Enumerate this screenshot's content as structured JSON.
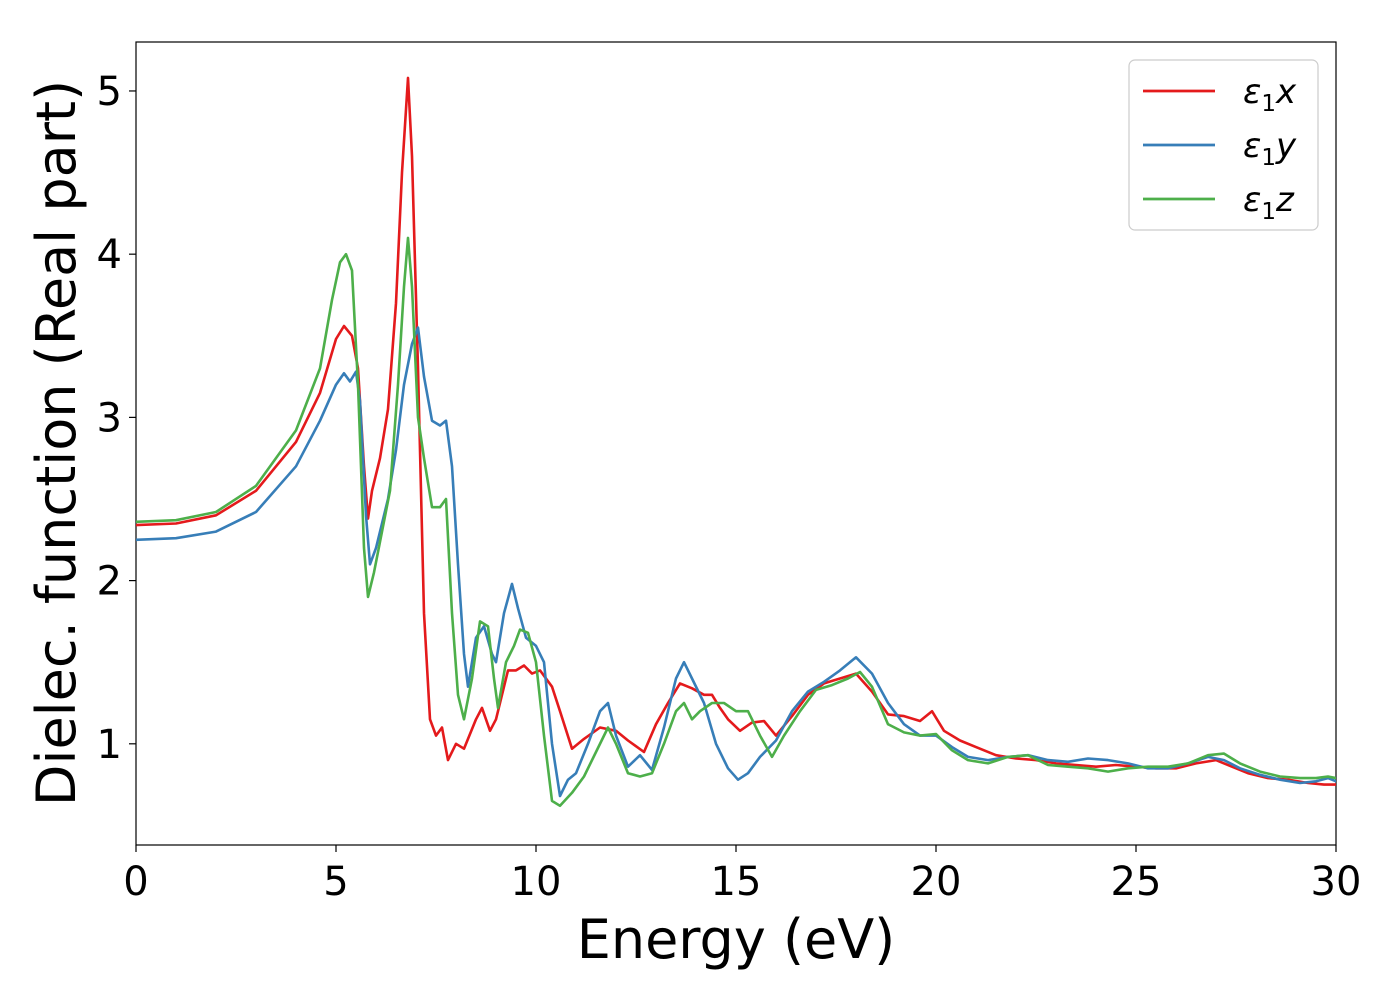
{
  "chart_data": {
    "type": "line",
    "xlabel": "Energy (eV)",
    "ylabel": "Dielec. function (Real part)",
    "xlim": [
      0,
      30
    ],
    "ylim": [
      0.38,
      5.3
    ],
    "xticks": [
      "0",
      "5",
      "10",
      "15",
      "20",
      "25",
      "30"
    ],
    "yticks": [
      "1",
      "2",
      "3",
      "4",
      "5"
    ],
    "grid": false,
    "legend_position": "top-right",
    "series": [
      {
        "name": "ε₁x",
        "legend_base": "ε",
        "legend_sub": "1",
        "legend_suffix": "x",
        "color": "#e41a1c",
        "points": [
          [
            0,
            2.34
          ],
          [
            1,
            2.35
          ],
          [
            2,
            2.4
          ],
          [
            3,
            2.55
          ],
          [
            4,
            2.85
          ],
          [
            4.6,
            3.15
          ],
          [
            5,
            3.48
          ],
          [
            5.2,
            3.56
          ],
          [
            5.4,
            3.5
          ],
          [
            5.55,
            3.3
          ],
          [
            5.7,
            2.7
          ],
          [
            5.8,
            2.38
          ],
          [
            5.9,
            2.55
          ],
          [
            6.1,
            2.75
          ],
          [
            6.3,
            3.05
          ],
          [
            6.5,
            3.7
          ],
          [
            6.65,
            4.5
          ],
          [
            6.8,
            5.08
          ],
          [
            6.9,
            4.6
          ],
          [
            7.05,
            3.3
          ],
          [
            7.2,
            1.8
          ],
          [
            7.35,
            1.15
          ],
          [
            7.5,
            1.05
          ],
          [
            7.65,
            1.1
          ],
          [
            7.8,
            0.9
          ],
          [
            8.0,
            1.0
          ],
          [
            8.2,
            0.97
          ],
          [
            8.5,
            1.15
          ],
          [
            8.65,
            1.22
          ],
          [
            8.85,
            1.08
          ],
          [
            9.0,
            1.15
          ],
          [
            9.3,
            1.45
          ],
          [
            9.5,
            1.45
          ],
          [
            9.7,
            1.48
          ],
          [
            9.9,
            1.43
          ],
          [
            10.1,
            1.45
          ],
          [
            10.4,
            1.35
          ],
          [
            10.6,
            1.2
          ],
          [
            10.9,
            0.97
          ],
          [
            11.2,
            1.03
          ],
          [
            11.6,
            1.1
          ],
          [
            12.0,
            1.08
          ],
          [
            12.3,
            1.02
          ],
          [
            12.7,
            0.95
          ],
          [
            13.0,
            1.12
          ],
          [
            13.3,
            1.25
          ],
          [
            13.6,
            1.37
          ],
          [
            13.9,
            1.34
          ],
          [
            14.2,
            1.3
          ],
          [
            14.4,
            1.3
          ],
          [
            14.6,
            1.22
          ],
          [
            14.8,
            1.15
          ],
          [
            15.1,
            1.08
          ],
          [
            15.4,
            1.13
          ],
          [
            15.7,
            1.14
          ],
          [
            16.0,
            1.05
          ],
          [
            16.4,
            1.17
          ],
          [
            16.8,
            1.3
          ],
          [
            17.2,
            1.37
          ],
          [
            17.6,
            1.4
          ],
          [
            18.0,
            1.43
          ],
          [
            18.4,
            1.32
          ],
          [
            18.8,
            1.18
          ],
          [
            19.2,
            1.17
          ],
          [
            19.6,
            1.14
          ],
          [
            19.9,
            1.2
          ],
          [
            20.2,
            1.08
          ],
          [
            20.6,
            1.02
          ],
          [
            21.0,
            0.98
          ],
          [
            21.5,
            0.93
          ],
          [
            22.0,
            0.91
          ],
          [
            22.5,
            0.9
          ],
          [
            23.0,
            0.88
          ],
          [
            23.5,
            0.87
          ],
          [
            24.0,
            0.86
          ],
          [
            24.5,
            0.87
          ],
          [
            25.0,
            0.86
          ],
          [
            25.5,
            0.85
          ],
          [
            26.0,
            0.85
          ],
          [
            26.5,
            0.88
          ],
          [
            27.0,
            0.9
          ],
          [
            27.4,
            0.86
          ],
          [
            27.8,
            0.82
          ],
          [
            28.3,
            0.79
          ],
          [
            28.8,
            0.78
          ],
          [
            29.3,
            0.76
          ],
          [
            29.7,
            0.75
          ],
          [
            30.0,
            0.75
          ]
        ]
      },
      {
        "name": "ε₁y",
        "legend_base": "ε",
        "legend_sub": "1",
        "legend_suffix": "y",
        "color": "#377eb8",
        "points": [
          [
            0,
            2.25
          ],
          [
            1,
            2.26
          ],
          [
            2,
            2.3
          ],
          [
            3,
            2.42
          ],
          [
            4,
            2.7
          ],
          [
            4.6,
            2.98
          ],
          [
            5,
            3.2
          ],
          [
            5.2,
            3.27
          ],
          [
            5.35,
            3.22
          ],
          [
            5.5,
            3.28
          ],
          [
            5.6,
            3.1
          ],
          [
            5.75,
            2.4
          ],
          [
            5.85,
            2.1
          ],
          [
            6.0,
            2.2
          ],
          [
            6.3,
            2.5
          ],
          [
            6.5,
            2.8
          ],
          [
            6.7,
            3.2
          ],
          [
            6.9,
            3.45
          ],
          [
            7.05,
            3.55
          ],
          [
            7.2,
            3.25
          ],
          [
            7.4,
            2.98
          ],
          [
            7.6,
            2.95
          ],
          [
            7.75,
            2.98
          ],
          [
            7.9,
            2.7
          ],
          [
            8.05,
            2.1
          ],
          [
            8.2,
            1.55
          ],
          [
            8.3,
            1.35
          ],
          [
            8.5,
            1.65
          ],
          [
            8.7,
            1.72
          ],
          [
            8.9,
            1.55
          ],
          [
            9.0,
            1.5
          ],
          [
            9.2,
            1.8
          ],
          [
            9.4,
            1.98
          ],
          [
            9.55,
            1.83
          ],
          [
            9.75,
            1.65
          ],
          [
            10.0,
            1.6
          ],
          [
            10.2,
            1.5
          ],
          [
            10.4,
            1.0
          ],
          [
            10.6,
            0.68
          ],
          [
            10.8,
            0.78
          ],
          [
            11.0,
            0.82
          ],
          [
            11.3,
            1.0
          ],
          [
            11.6,
            1.2
          ],
          [
            11.8,
            1.25
          ],
          [
            12.0,
            1.05
          ],
          [
            12.3,
            0.86
          ],
          [
            12.6,
            0.93
          ],
          [
            12.9,
            0.84
          ],
          [
            13.2,
            1.1
          ],
          [
            13.5,
            1.4
          ],
          [
            13.7,
            1.5
          ],
          [
            13.9,
            1.4
          ],
          [
            14.2,
            1.25
          ],
          [
            14.5,
            1.0
          ],
          [
            14.8,
            0.85
          ],
          [
            15.05,
            0.78
          ],
          [
            15.3,
            0.82
          ],
          [
            15.6,
            0.92
          ],
          [
            16.0,
            1.02
          ],
          [
            16.4,
            1.2
          ],
          [
            16.8,
            1.32
          ],
          [
            17.2,
            1.38
          ],
          [
            17.6,
            1.45
          ],
          [
            18.0,
            1.53
          ],
          [
            18.4,
            1.43
          ],
          [
            18.8,
            1.25
          ],
          [
            19.2,
            1.12
          ],
          [
            19.6,
            1.05
          ],
          [
            20.0,
            1.05
          ],
          [
            20.4,
            0.98
          ],
          [
            20.8,
            0.92
          ],
          [
            21.3,
            0.9
          ],
          [
            21.8,
            0.92
          ],
          [
            22.3,
            0.93
          ],
          [
            22.8,
            0.9
          ],
          [
            23.3,
            0.89
          ],
          [
            23.8,
            0.91
          ],
          [
            24.3,
            0.9
          ],
          [
            24.8,
            0.88
          ],
          [
            25.3,
            0.85
          ],
          [
            25.8,
            0.85
          ],
          [
            26.3,
            0.88
          ],
          [
            26.8,
            0.92
          ],
          [
            27.2,
            0.9
          ],
          [
            27.6,
            0.85
          ],
          [
            28.1,
            0.81
          ],
          [
            28.6,
            0.78
          ],
          [
            29.1,
            0.76
          ],
          [
            29.5,
            0.77
          ],
          [
            29.8,
            0.79
          ],
          [
            30.0,
            0.77
          ]
        ]
      },
      {
        "name": "ε₁z",
        "legend_base": "ε",
        "legend_sub": "1",
        "legend_suffix": "z",
        "color": "#4daf4a",
        "points": [
          [
            0,
            2.36
          ],
          [
            1,
            2.37
          ],
          [
            2,
            2.42
          ],
          [
            3,
            2.58
          ],
          [
            4,
            2.92
          ],
          [
            4.6,
            3.3
          ],
          [
            4.9,
            3.72
          ],
          [
            5.1,
            3.95
          ],
          [
            5.25,
            4.0
          ],
          [
            5.4,
            3.9
          ],
          [
            5.55,
            3.2
          ],
          [
            5.7,
            2.2
          ],
          [
            5.8,
            1.9
          ],
          [
            5.95,
            2.05
          ],
          [
            6.15,
            2.3
          ],
          [
            6.35,
            2.55
          ],
          [
            6.55,
            3.2
          ],
          [
            6.7,
            3.8
          ],
          [
            6.8,
            4.1
          ],
          [
            6.9,
            3.8
          ],
          [
            7.05,
            3.0
          ],
          [
            7.2,
            2.75
          ],
          [
            7.4,
            2.45
          ],
          [
            7.6,
            2.45
          ],
          [
            7.75,
            2.5
          ],
          [
            7.9,
            1.8
          ],
          [
            8.05,
            1.3
          ],
          [
            8.2,
            1.15
          ],
          [
            8.4,
            1.4
          ],
          [
            8.6,
            1.75
          ],
          [
            8.8,
            1.72
          ],
          [
            8.95,
            1.4
          ],
          [
            9.05,
            1.22
          ],
          [
            9.25,
            1.5
          ],
          [
            9.45,
            1.6
          ],
          [
            9.6,
            1.7
          ],
          [
            9.8,
            1.68
          ],
          [
            10.0,
            1.5
          ],
          [
            10.2,
            1.05
          ],
          [
            10.4,
            0.65
          ],
          [
            10.6,
            0.62
          ],
          [
            10.9,
            0.7
          ],
          [
            11.2,
            0.8
          ],
          [
            11.5,
            0.95
          ],
          [
            11.8,
            1.1
          ],
          [
            12.0,
            1.0
          ],
          [
            12.3,
            0.82
          ],
          [
            12.6,
            0.8
          ],
          [
            12.9,
            0.82
          ],
          [
            13.2,
            1.0
          ],
          [
            13.5,
            1.2
          ],
          [
            13.7,
            1.25
          ],
          [
            13.9,
            1.15
          ],
          [
            14.1,
            1.2
          ],
          [
            14.4,
            1.25
          ],
          [
            14.7,
            1.25
          ],
          [
            15.0,
            1.2
          ],
          [
            15.3,
            1.2
          ],
          [
            15.6,
            1.05
          ],
          [
            15.9,
            0.92
          ],
          [
            16.2,
            1.05
          ],
          [
            16.6,
            1.2
          ],
          [
            17.0,
            1.33
          ],
          [
            17.4,
            1.36
          ],
          [
            17.8,
            1.4
          ],
          [
            18.1,
            1.44
          ],
          [
            18.4,
            1.35
          ],
          [
            18.8,
            1.12
          ],
          [
            19.2,
            1.07
          ],
          [
            19.6,
            1.05
          ],
          [
            20.0,
            1.06
          ],
          [
            20.4,
            0.96
          ],
          [
            20.8,
            0.9
          ],
          [
            21.3,
            0.88
          ],
          [
            21.8,
            0.92
          ],
          [
            22.3,
            0.93
          ],
          [
            22.8,
            0.87
          ],
          [
            23.3,
            0.86
          ],
          [
            23.8,
            0.85
          ],
          [
            24.3,
            0.83
          ],
          [
            24.8,
            0.85
          ],
          [
            25.3,
            0.86
          ],
          [
            25.8,
            0.86
          ],
          [
            26.3,
            0.88
          ],
          [
            26.8,
            0.93
          ],
          [
            27.2,
            0.94
          ],
          [
            27.6,
            0.88
          ],
          [
            28.1,
            0.83
          ],
          [
            28.6,
            0.8
          ],
          [
            29.1,
            0.79
          ],
          [
            29.5,
            0.79
          ],
          [
            29.8,
            0.8
          ],
          [
            30.0,
            0.79
          ]
        ]
      }
    ]
  }
}
